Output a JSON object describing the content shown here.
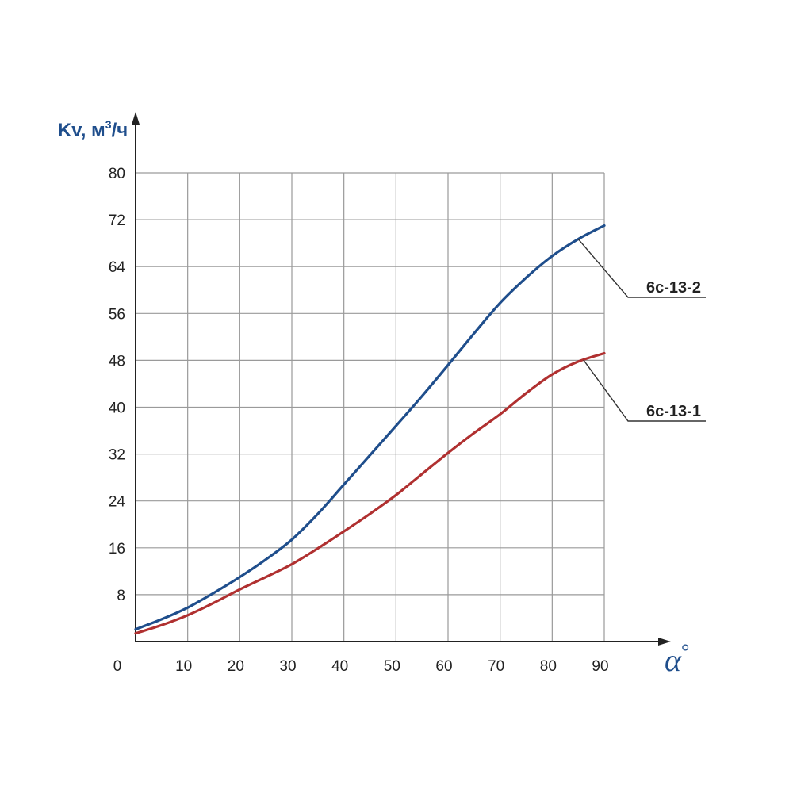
{
  "chart_data": {
    "type": "line",
    "ylabel": "Kv, м³/ч",
    "xlabel": "α°",
    "origin_label": "0",
    "xlim": [
      0,
      90
    ],
    "ylim": [
      0,
      80
    ],
    "x_ticks": [
      10,
      20,
      30,
      40,
      50,
      60,
      70,
      80,
      90
    ],
    "y_ticks": [
      8,
      16,
      24,
      32,
      40,
      48,
      56,
      64,
      72,
      80
    ],
    "grid": true,
    "colors": {
      "axis_label": "#1f4e8c",
      "grid": "#9a9a9a",
      "axis": "#222222"
    },
    "series": [
      {
        "name": "6с-13-2",
        "color": "#1f4e8c",
        "label_at_x": 85,
        "x": [
          0,
          5,
          10,
          15,
          20,
          25,
          30,
          35,
          40,
          45,
          50,
          55,
          60,
          65,
          70,
          75,
          80,
          85,
          90
        ],
        "y": [
          2.1,
          3.8,
          5.8,
          8.3,
          11.0,
          14.0,
          17.4,
          21.8,
          26.8,
          31.8,
          36.8,
          41.9,
          47.2,
          52.6,
          57.8,
          62.1,
          65.8,
          68.7,
          71.0
        ]
      },
      {
        "name": "6с-13-1",
        "color": "#b03030",
        "label_at_x": 86,
        "x": [
          0,
          5,
          10,
          15,
          20,
          25,
          30,
          35,
          40,
          45,
          50,
          55,
          60,
          65,
          70,
          75,
          80,
          85,
          90
        ],
        "y": [
          1.4,
          2.8,
          4.5,
          6.6,
          8.9,
          11.0,
          13.2,
          15.9,
          18.8,
          21.8,
          25.0,
          28.6,
          32.2,
          35.6,
          38.8,
          42.4,
          45.6,
          47.8,
          49.2
        ]
      }
    ]
  }
}
